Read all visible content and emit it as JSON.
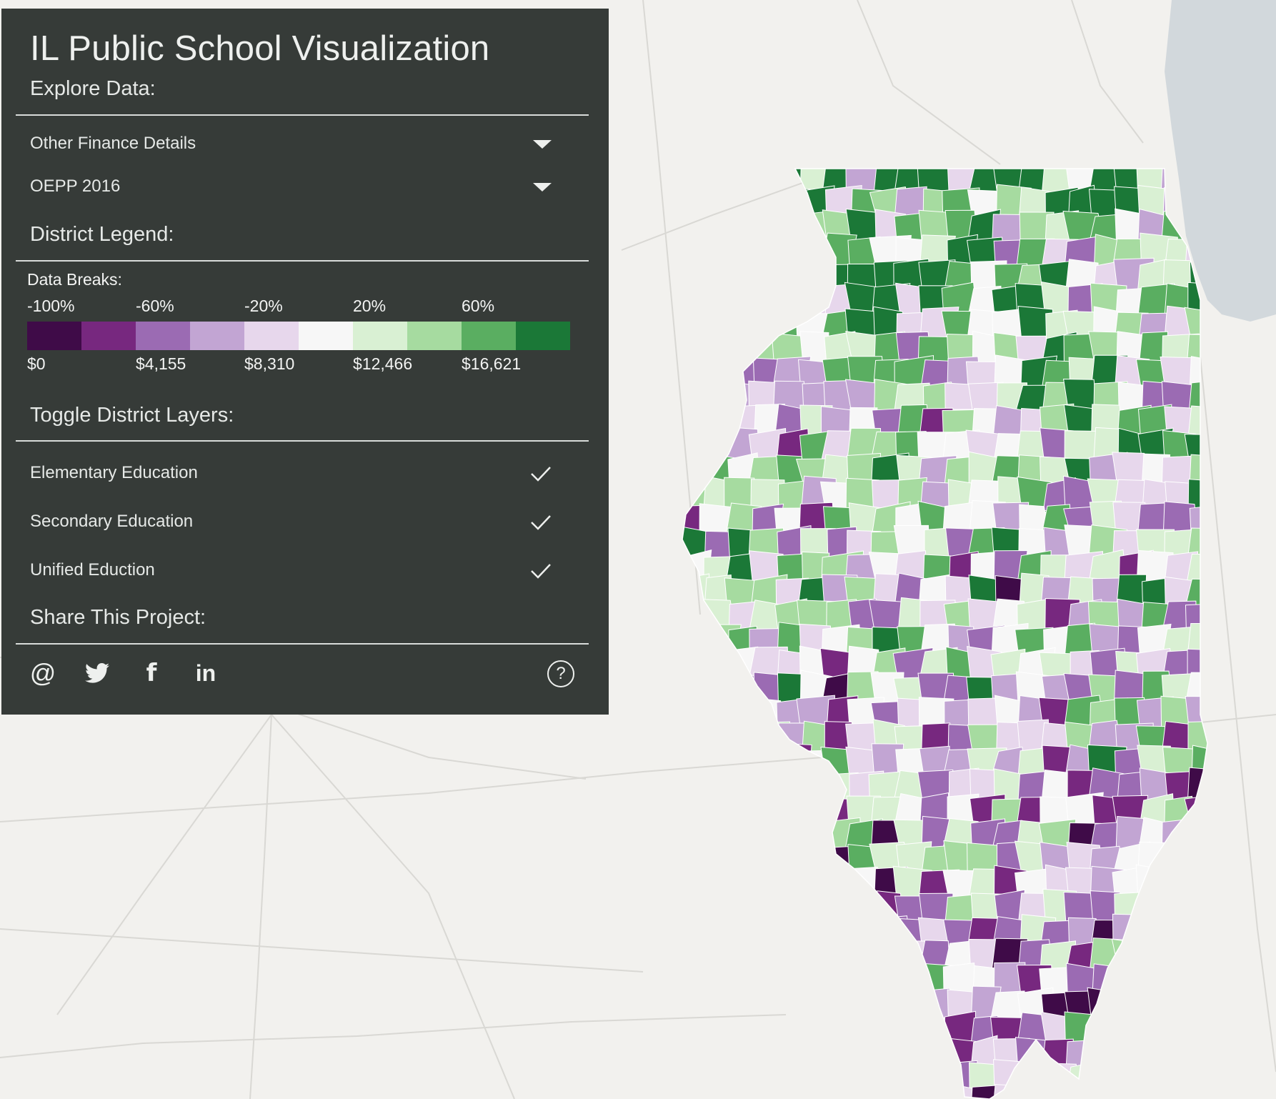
{
  "app": {
    "title": "IL Public School Visualization"
  },
  "explore": {
    "heading": "Explore Data:",
    "category_value": "Other Finance Details",
    "measure_value": "OEPP 2016"
  },
  "legend": {
    "heading": "District Legend:",
    "breaks_label": "Data Breaks:",
    "pct_labels": [
      "-100%",
      "-60%",
      "-20%",
      "20%",
      "60%"
    ],
    "dollar_labels": [
      "$0",
      "$4,155",
      "$8,310",
      "$12,466",
      "$16,621"
    ],
    "colors": [
      "#3f0b48",
      "#77287f",
      "#9b6bb3",
      "#c2a5d3",
      "#e7d7ec",
      "#f7f7f7",
      "#d9f0d3",
      "#a6dba0",
      "#5aae61",
      "#1b7837"
    ]
  },
  "layers": {
    "heading": "Toggle District Layers:",
    "items": [
      {
        "label": "Elementary Education",
        "checked": true
      },
      {
        "label": "Secondary Education",
        "checked": true
      },
      {
        "label": "Unified Eduction",
        "checked": true
      }
    ]
  },
  "share": {
    "heading": "Share This Project:",
    "icons": [
      "email-icon",
      "twitter-icon",
      "facebook-icon",
      "linkedin-icon"
    ],
    "email_glyph": "@",
    "facebook_glyph": "f",
    "linkedin_glyph": "in",
    "help_glyph": "?"
  },
  "map": {
    "basemap_land": "#f2f1ee",
    "lake_color": "#d2d8dc",
    "road_color": "#d9d8d4"
  }
}
